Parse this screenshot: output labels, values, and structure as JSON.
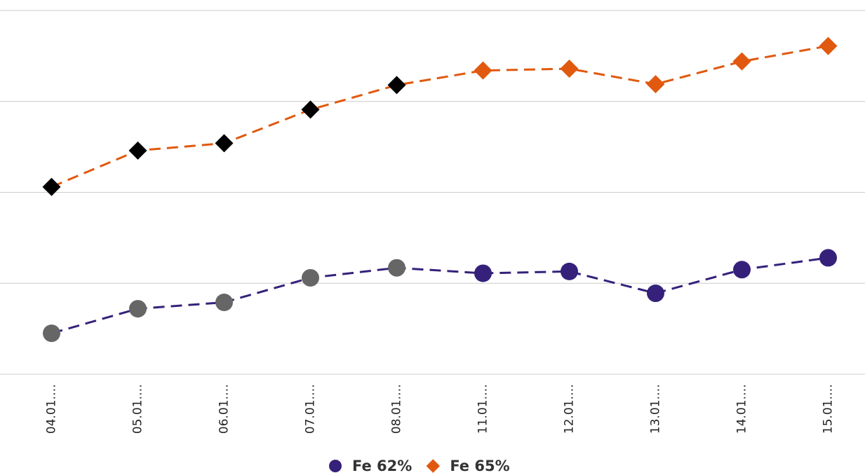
{
  "chart_data": {
    "type": "line",
    "categories": [
      "04.01.…",
      "05.01.…",
      "06.01.…",
      "07.01.…",
      "08.01.…",
      "11.01.…",
      "12.01.…",
      "13.01.…",
      "14.01.…",
      "15.01.…"
    ],
    "series": [
      {
        "name": "Fe 62%",
        "color": "#35217a",
        "marker": "circle",
        "marker_colors": [
          "#666666",
          "#666666",
          "#666666",
          "#666666",
          "#666666",
          "#35217a",
          "#35217a",
          "#35217a",
          "#35217a",
          "#35217a"
        ],
        "values": [
          0.45,
          0.72,
          0.79,
          1.06,
          1.17,
          1.11,
          1.13,
          0.89,
          1.15,
          1.28
        ]
      },
      {
        "name": "Fe 65%",
        "color": "#e0590f",
        "marker": "diamond",
        "marker_colors": [
          "#000000",
          "#000000",
          "#000000",
          "#000000",
          "#000000",
          "#e0590f",
          "#e0590f",
          "#e0590f",
          "#e0590f",
          "#e0590f"
        ],
        "values": [
          2.06,
          2.46,
          2.54,
          2.91,
          3.18,
          3.34,
          3.36,
          3.19,
          3.44,
          3.61
        ]
      }
    ],
    "ylim": [
      0,
      4
    ],
    "yticks": [
      0,
      1,
      2,
      3,
      4
    ],
    "grid": true,
    "legend": "bottom"
  }
}
